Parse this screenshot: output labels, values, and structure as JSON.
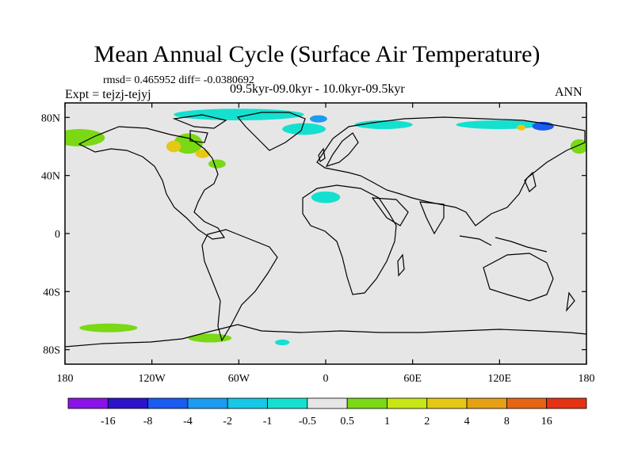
{
  "title": "Mean Annual Cycle (Surface Air Temperature)",
  "stats": "rmsd= 0.465952 diff= -0.0380692",
  "experiment": "Expt = tejzj-tejyj",
  "period": "09.5kyr-09.0kyr - 10.0kyr-09.5kyr",
  "season": "ANN",
  "axes": {
    "lat_labels": [
      "80N",
      "40N",
      "0",
      "40S",
      "80S"
    ],
    "lat_values": [
      80,
      40,
      0,
      -40,
      -80
    ],
    "lon_labels": [
      "180",
      "120W",
      "60W",
      "0",
      "60E",
      "120E",
      "180"
    ],
    "lon_values": [
      -180,
      -120,
      -60,
      0,
      60,
      120,
      180
    ],
    "lat_range": [
      -90,
      90
    ],
    "lon_range": [
      -180,
      180
    ]
  },
  "colorbar": {
    "colors": [
      "#8a14e6",
      "#2c14c8",
      "#1a5cf0",
      "#1a9cf0",
      "#14c8e6",
      "#14e0d0",
      "#e6e6e6",
      "#7ad814",
      "#c8e614",
      "#e6c814",
      "#e6a014",
      "#e66414",
      "#e63214"
    ],
    "labels": [
      "-16",
      "-8",
      "-4",
      "-2",
      "-1",
      "-0.5",
      "0.5",
      "1",
      "2",
      "4",
      "8",
      "16"
    ]
  },
  "anomaly_regions": [
    {
      "lon": -60,
      "lat": 82,
      "w": 90,
      "h": 8,
      "value": -0.7
    },
    {
      "lon": -15,
      "lat": 72,
      "w": 30,
      "h": 8,
      "value": -0.7
    },
    {
      "lon": 40,
      "lat": 75,
      "w": 40,
      "h": 6,
      "value": -0.7
    },
    {
      "lon": 120,
      "lat": 75,
      "w": 60,
      "h": 6,
      "value": -0.7
    },
    {
      "lon": 150,
      "lat": 74,
      "w": 15,
      "h": 6,
      "value": -5
    },
    {
      "lon": -5,
      "lat": 79,
      "w": 12,
      "h": 5,
      "value": -3
    },
    {
      "lon": 135,
      "lat": 73,
      "w": 6,
      "h": 4,
      "value": 3
    },
    {
      "lon": -170,
      "lat": 66,
      "w": 35,
      "h": 12,
      "value": 0.7
    },
    {
      "lon": -95,
      "lat": 62,
      "w": 20,
      "h": 14,
      "value": 0.7
    },
    {
      "lon": -105,
      "lat": 60,
      "w": 10,
      "h": 8,
      "value": 3
    },
    {
      "lon": -85,
      "lat": 55,
      "w": 10,
      "h": 6,
      "value": 2
    },
    {
      "lon": -75,
      "lat": 48,
      "w": 12,
      "h": 6,
      "value": 0.7
    },
    {
      "lon": 0,
      "lat": 25,
      "w": 20,
      "h": 8,
      "value": -0.7
    },
    {
      "lon": 175,
      "lat": 60,
      "w": 12,
      "h": 10,
      "value": 0.7
    },
    {
      "lon": -150,
      "lat": -65,
      "w": 40,
      "h": 6,
      "value": 0.7
    },
    {
      "lon": -80,
      "lat": -72,
      "w": 30,
      "h": 6,
      "value": 0.7
    },
    {
      "lon": -30,
      "lat": -75,
      "w": 10,
      "h": 4,
      "value": -0.7
    }
  ]
}
